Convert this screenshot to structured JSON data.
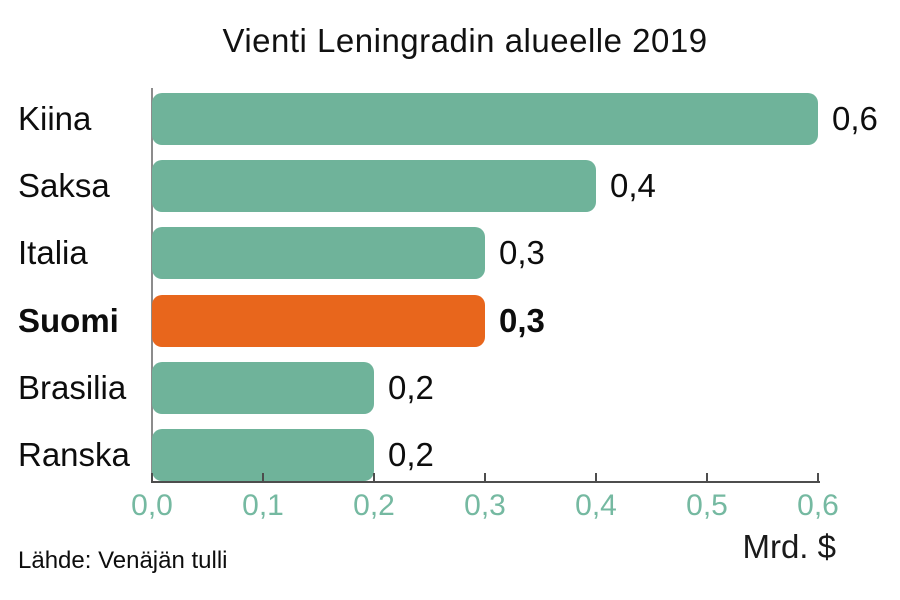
{
  "title": "Vienti Leningradin alueelle 2019",
  "source": "Lähde: Venäjän tulli",
  "unit_label": "Mrd. $",
  "colors": {
    "bar": "#6FB39A",
    "highlight": "#E8661C",
    "tick_text": "#75b9a1",
    "axis": "#4d4d4d",
    "text": "#0d0d0d"
  },
  "chart_data": {
    "type": "bar",
    "orientation": "horizontal",
    "title": "Vienti Leningradin alueelle 2019",
    "categories": [
      "Kiina",
      "Saksa",
      "Italia",
      "Suomi",
      "Brasilia",
      "Ranska"
    ],
    "values": [
      0.6,
      0.4,
      0.3,
      0.3,
      0.2,
      0.2
    ],
    "value_labels": [
      "0,6",
      "0,4",
      "0,3",
      "0,3",
      "0,2",
      "0,2"
    ],
    "highlight_index": 3,
    "highlight_category": "Suomi",
    "bar_color": "#6FB39A",
    "highlight_color": "#E8661C",
    "xlim": [
      0,
      0.6
    ],
    "x_ticks": [
      0.0,
      0.1,
      0.2,
      0.3,
      0.4,
      0.5,
      0.6
    ],
    "x_tick_labels": [
      "0,0",
      "0,1",
      "0,2",
      "0,3",
      "0,4",
      "0,5",
      "0,6"
    ],
    "xlabel": "Mrd. $",
    "grid": false,
    "legend": false,
    "source": "Lähde: Venäjän tulli"
  }
}
